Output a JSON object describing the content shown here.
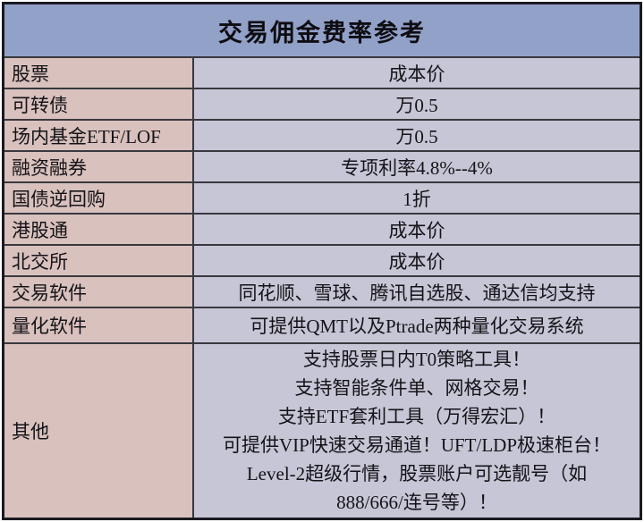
{
  "table": {
    "title": "交易佣金费率参考",
    "colors": {
      "header_bg": "#92a1c8",
      "label_column_bg": "#d9c1bd",
      "value_column_bg": "#c7c6d6",
      "inner_border": "#39383f",
      "outer_border": "#1b1a21",
      "text": "#141318"
    },
    "rows": [
      {
        "label": "股票",
        "value": "成本价"
      },
      {
        "label": "可转债",
        "value": "万0.5"
      },
      {
        "label": "场内基金ETF/LOF",
        "value": "万0.5"
      },
      {
        "label": "融资融券",
        "value": "专项利率4.8%--4%"
      },
      {
        "label": "国债逆回购",
        "value": "1折"
      },
      {
        "label": "港股通",
        "value": "成本价"
      },
      {
        "label": "北交所",
        "value": "成本价"
      },
      {
        "label": "交易软件",
        "value": "同花顺、雪球、腾讯自选股、通达信均支持"
      },
      {
        "label": "量化软件",
        "value": "可提供QMT以及Ptrade两种量化交易系统"
      }
    ],
    "other_row": {
      "label": "其他",
      "lines": [
        "支持股票日内T0策略工具！",
        "支持智能条件单、网格交易！",
        "支持ETF套利工具（万得宏汇）！",
        "可提供VIP快速交易通道！UFT/LDP极速柜台！",
        "Level-2超级行情，股票账户可选靓号（如",
        "888/666/连号等）！"
      ]
    }
  }
}
